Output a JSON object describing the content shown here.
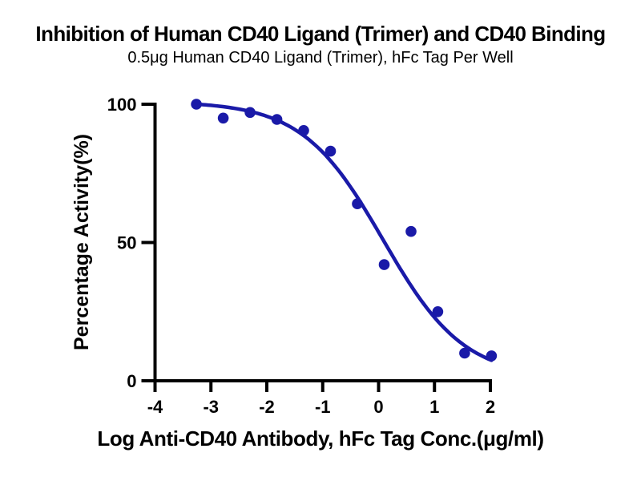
{
  "chart_data": {
    "type": "scatter",
    "title": "Inhibition of Human CD40 Ligand (Trimer) and CD40 Binding",
    "subtitle": "0.5μg Human CD40 Ligand (Trimer), hFc Tag Per Well",
    "xlabel": "Log Anti-CD40 Antibody, hFc Tag Conc.(μg/ml)",
    "ylabel": "Percentage Activity(%)",
    "xlim": [
      -4,
      2
    ],
    "ylim": [
      0,
      100
    ],
    "xticks": [
      -4,
      -3,
      -2,
      -1,
      0,
      1,
      2
    ],
    "yticks": [
      0,
      50,
      100
    ],
    "grid": false,
    "legend": "none",
    "colors": {
      "marker": "#1a1aa8",
      "fit_line": "#1a1aa8",
      "axis": "#000000",
      "text": "#000000",
      "background": "#ffffff"
    },
    "series": [
      {
        "name": "Anti-CD40 Antibody, hFc Tag",
        "x": [
          -3.26,
          -2.78,
          -2.3,
          -1.82,
          -1.34,
          -0.86,
          -0.38,
          0.1,
          0.58,
          1.06,
          1.54,
          2.02
        ],
        "y": [
          100,
          95,
          97,
          94.5,
          90.5,
          83,
          64,
          42,
          54,
          25,
          10,
          9
        ]
      }
    ],
    "fit_curve": {
      "model": "four_parameter_logistic_inhibition",
      "top": 101,
      "bottom": 1,
      "log_ic50": 0.08,
      "hill_slope_abs": 0.6,
      "x_range": [
        -3.26,
        2.02
      ]
    }
  }
}
